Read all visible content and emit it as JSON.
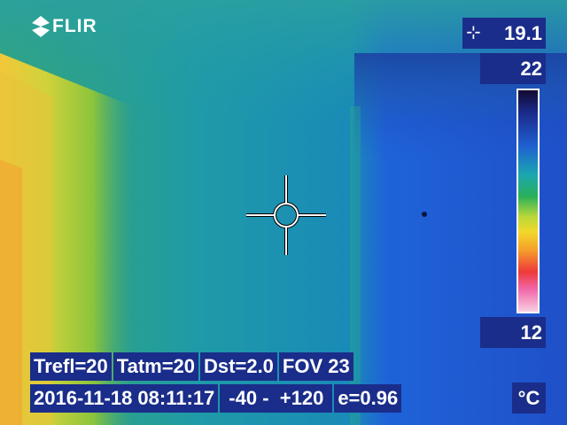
{
  "logo": {
    "text": "FLIR",
    "icon": "flir-logo-icon"
  },
  "spot_meter": {
    "marker_icon": "spot-marker-icon",
    "marker_glyph": "⊹",
    "value": "19.1"
  },
  "scale": {
    "max": "22",
    "min": "12",
    "unit": "°C"
  },
  "params": {
    "trefl": "Trefl=20",
    "tatm": "Tatm=20",
    "dst": "Dst=2.0",
    "fov": "FOV 23"
  },
  "status": {
    "datetime": "2016-11-18 08:11:17",
    "range": "-40 -  +120",
    "emissivity": "e=0.96"
  },
  "colors": {
    "overlay_bg": "#1a2d8a",
    "text": "#ffffff"
  }
}
